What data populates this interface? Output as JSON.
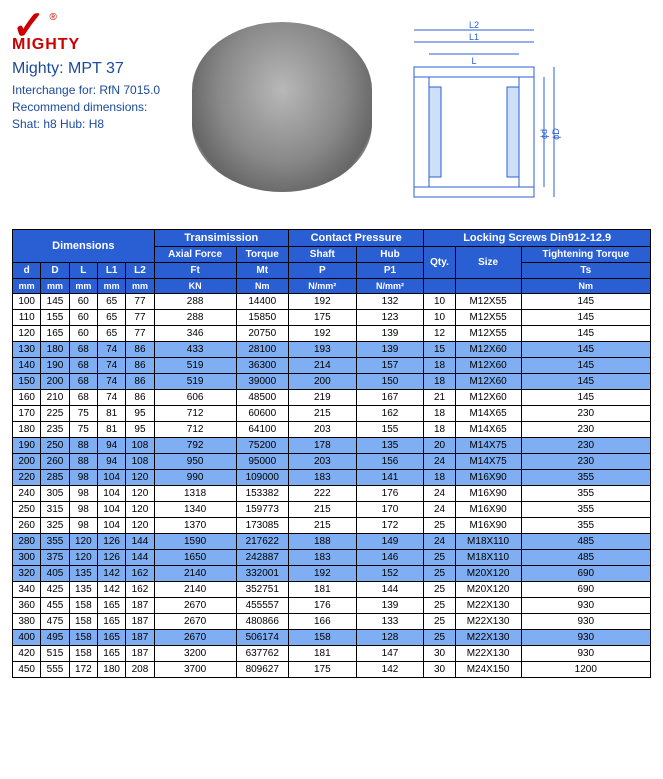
{
  "brand": {
    "name": "MIGHTY",
    "reg": "®"
  },
  "title": "Mighty: MPT 37",
  "meta": {
    "l1": "Interchange for: RfN 7015.0",
    "l2": "Recommend dimensions:",
    "l3": "Shat: h8    Hub: H8"
  },
  "diagram_labels": {
    "L2": "L2",
    "L1": "L1",
    "L": "L",
    "phiD": "ϕD",
    "phid": "ϕd"
  },
  "headers": {
    "dimensions": "Dimensions",
    "transmission": "Transimission",
    "contact_pressure": "Contact Pressure",
    "locking_screws": "Locking Screws Din912-12.9",
    "axial_force": "Axial Force",
    "torque": "Torque",
    "shaft": "Shaft",
    "hub": "Hub",
    "tightening_torque": "Tightening Torque",
    "d": "d",
    "D": "D",
    "L": "L",
    "L1": "L1",
    "L2": "L2",
    "Ft": "Ft",
    "Mt": "Mt",
    "P": "P",
    "P1": "P1",
    "Qty": "Qty.",
    "Size": "Size",
    "Ts": "Ts",
    "mm": "mm",
    "KN": "KN",
    "Nm": "Nm",
    "Nmm2": "N/mm²"
  },
  "rows": [
    {
      "d": "100",
      "D": "145",
      "L": "60",
      "L1": "65",
      "L2": "77",
      "Ft": "288",
      "Mt": "14400",
      "P": "192",
      "P1": "132",
      "Qty": "10",
      "Size": "M12X55",
      "Ts": "145"
    },
    {
      "d": "110",
      "D": "155",
      "L": "60",
      "L1": "65",
      "L2": "77",
      "Ft": "288",
      "Mt": "15850",
      "P": "175",
      "P1": "123",
      "Qty": "10",
      "Size": "M12X55",
      "Ts": "145"
    },
    {
      "d": "120",
      "D": "165",
      "L": "60",
      "L1": "65",
      "L2": "77",
      "Ft": "346",
      "Mt": "20750",
      "P": "192",
      "P1": "139",
      "Qty": "12",
      "Size": "M12X55",
      "Ts": "145"
    },
    {
      "d": "130",
      "D": "180",
      "L": "68",
      "L1": "74",
      "L2": "86",
      "Ft": "433",
      "Mt": "28100",
      "P": "193",
      "P1": "139",
      "Qty": "15",
      "Size": "M12X60",
      "Ts": "145"
    },
    {
      "d": "140",
      "D": "190",
      "L": "68",
      "L1": "74",
      "L2": "86",
      "Ft": "519",
      "Mt": "36300",
      "P": "214",
      "P1": "157",
      "Qty": "18",
      "Size": "M12X60",
      "Ts": "145"
    },
    {
      "d": "150",
      "D": "200",
      "L": "68",
      "L1": "74",
      "L2": "86",
      "Ft": "519",
      "Mt": "39000",
      "P": "200",
      "P1": "150",
      "Qty": "18",
      "Size": "M12X60",
      "Ts": "145"
    },
    {
      "d": "160",
      "D": "210",
      "L": "68",
      "L1": "74",
      "L2": "86",
      "Ft": "606",
      "Mt": "48500",
      "P": "219",
      "P1": "167",
      "Qty": "21",
      "Size": "M12X60",
      "Ts": "145"
    },
    {
      "d": "170",
      "D": "225",
      "L": "75",
      "L1": "81",
      "L2": "95",
      "Ft": "712",
      "Mt": "60600",
      "P": "215",
      "P1": "162",
      "Qty": "18",
      "Size": "M14X65",
      "Ts": "230"
    },
    {
      "d": "180",
      "D": "235",
      "L": "75",
      "L1": "81",
      "L2": "95",
      "Ft": "712",
      "Mt": "64100",
      "P": "203",
      "P1": "155",
      "Qty": "18",
      "Size": "M14X65",
      "Ts": "230"
    },
    {
      "d": "190",
      "D": "250",
      "L": "88",
      "L1": "94",
      "L2": "108",
      "Ft": "792",
      "Mt": "75200",
      "P": "178",
      "P1": "135",
      "Qty": "20",
      "Size": "M14X75",
      "Ts": "230"
    },
    {
      "d": "200",
      "D": "260",
      "L": "88",
      "L1": "94",
      "L2": "108",
      "Ft": "950",
      "Mt": "95000",
      "P": "203",
      "P1": "156",
      "Qty": "24",
      "Size": "M14X75",
      "Ts": "230"
    },
    {
      "d": "220",
      "D": "285",
      "L": "98",
      "L1": "104",
      "L2": "120",
      "Ft": "990",
      "Mt": "109000",
      "P": "183",
      "P1": "141",
      "Qty": "18",
      "Size": "M16X90",
      "Ts": "355"
    },
    {
      "d": "240",
      "D": "305",
      "L": "98",
      "L1": "104",
      "L2": "120",
      "Ft": "1318",
      "Mt": "153382",
      "P": "222",
      "P1": "176",
      "Qty": "24",
      "Size": "M16X90",
      "Ts": "355"
    },
    {
      "d": "250",
      "D": "315",
      "L": "98",
      "L1": "104",
      "L2": "120",
      "Ft": "1340",
      "Mt": "159773",
      "P": "215",
      "P1": "170",
      "Qty": "24",
      "Size": "M16X90",
      "Ts": "355"
    },
    {
      "d": "260",
      "D": "325",
      "L": "98",
      "L1": "104",
      "L2": "120",
      "Ft": "1370",
      "Mt": "173085",
      "P": "215",
      "P1": "172",
      "Qty": "25",
      "Size": "M16X90",
      "Ts": "355"
    },
    {
      "d": "280",
      "D": "355",
      "L": "120",
      "L1": "126",
      "L2": "144",
      "Ft": "1590",
      "Mt": "217622",
      "P": "188",
      "P1": "149",
      "Qty": "24",
      "Size": "M18X110",
      "Ts": "485"
    },
    {
      "d": "300",
      "D": "375",
      "L": "120",
      "L1": "126",
      "L2": "144",
      "Ft": "1650",
      "Mt": "242887",
      "P": "183",
      "P1": "146",
      "Qty": "25",
      "Size": "M18X110",
      "Ts": "485"
    },
    {
      "d": "320",
      "D": "405",
      "L": "135",
      "L1": "142",
      "L2": "162",
      "Ft": "2140",
      "Mt": "332001",
      "P": "192",
      "P1": "152",
      "Qty": "25",
      "Size": "M20X120",
      "Ts": "690"
    },
    {
      "d": "340",
      "D": "425",
      "L": "135",
      "L1": "142",
      "L2": "162",
      "Ft": "2140",
      "Mt": "352751",
      "P": "181",
      "P1": "144",
      "Qty": "25",
      "Size": "M20X120",
      "Ts": "690"
    },
    {
      "d": "360",
      "D": "455",
      "L": "158",
      "L1": "165",
      "L2": "187",
      "Ft": "2670",
      "Mt": "455557",
      "P": "176",
      "P1": "139",
      "Qty": "25",
      "Size": "M22X130",
      "Ts": "930"
    },
    {
      "d": "380",
      "D": "475",
      "L": "158",
      "L1": "165",
      "L2": "187",
      "Ft": "2670",
      "Mt": "480866",
      "P": "166",
      "P1": "133",
      "Qty": "25",
      "Size": "M22X130",
      "Ts": "930"
    },
    {
      "d": "400",
      "D": "495",
      "L": "158",
      "L1": "165",
      "L2": "187",
      "Ft": "2670",
      "Mt": "506174",
      "P": "158",
      "P1": "128",
      "Qty": "25",
      "Size": "M22X130",
      "Ts": "930"
    },
    {
      "d": "420",
      "D": "515",
      "L": "158",
      "L1": "165",
      "L2": "187",
      "Ft": "3200",
      "Mt": "637762",
      "P": "181",
      "P1": "147",
      "Qty": "30",
      "Size": "M22X130",
      "Ts": "930"
    },
    {
      "d": "450",
      "D": "555",
      "L": "172",
      "L1": "180",
      "L2": "208",
      "Ft": "3700",
      "Mt": "809627",
      "P": "175",
      "P1": "142",
      "Qty": "30",
      "Size": "M24X150",
      "Ts": "1200"
    }
  ],
  "alt_rows": [
    false,
    false,
    false,
    true,
    true,
    true,
    false,
    false,
    false,
    true,
    true,
    true,
    false,
    false,
    false,
    true,
    true,
    true,
    false,
    false,
    false,
    true,
    false,
    false
  ]
}
